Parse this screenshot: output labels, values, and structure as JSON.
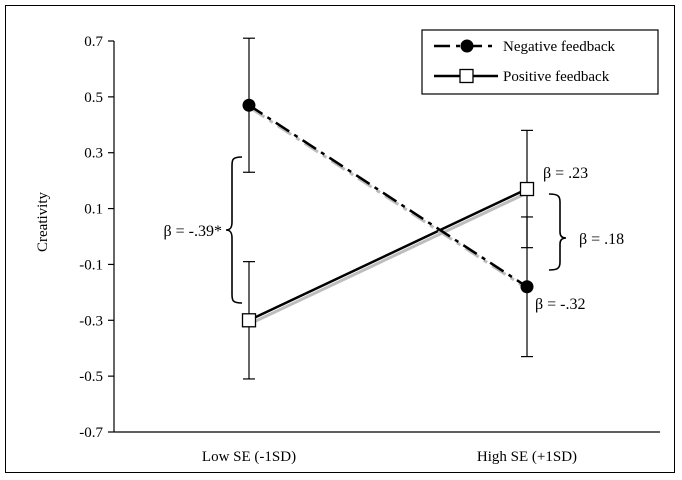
{
  "chart_data": {
    "type": "line",
    "title": "",
    "xlabel": "",
    "ylabel": "Creativity",
    "categories": [
      "Low SE (-1SD)",
      "High SE (+1SD)"
    ],
    "yticks": [
      "0.7",
      "0.5",
      "0.3",
      "0.1",
      "-0.1",
      "-0.3",
      "-0.5",
      "-0.7"
    ],
    "ylim": [
      -0.7,
      0.7
    ],
    "grid": false,
    "legend_position": "top-right",
    "series": [
      {
        "name": "Negative feedback",
        "values": [
          0.47,
          -0.18
        ],
        "errors": [
          0.24,
          0.25
        ],
        "line_style": "dash-dot",
        "marker": "filled-circle",
        "color": "#000000"
      },
      {
        "name": "Positive feedback",
        "values": [
          -0.3,
          0.17
        ],
        "errors": [
          0.21,
          0.21
        ],
        "line_style": "solid",
        "marker": "open-square",
        "color": "#000000"
      }
    ],
    "annotations": [
      {
        "text": "β = -.39*",
        "target": "low-se-difference"
      },
      {
        "text": "β = .23",
        "target": "positive-feedback-slope"
      },
      {
        "text": "β = .18",
        "target": "high-se-difference"
      },
      {
        "text": "β = -.32",
        "target": "negative-feedback-slope"
      }
    ]
  }
}
